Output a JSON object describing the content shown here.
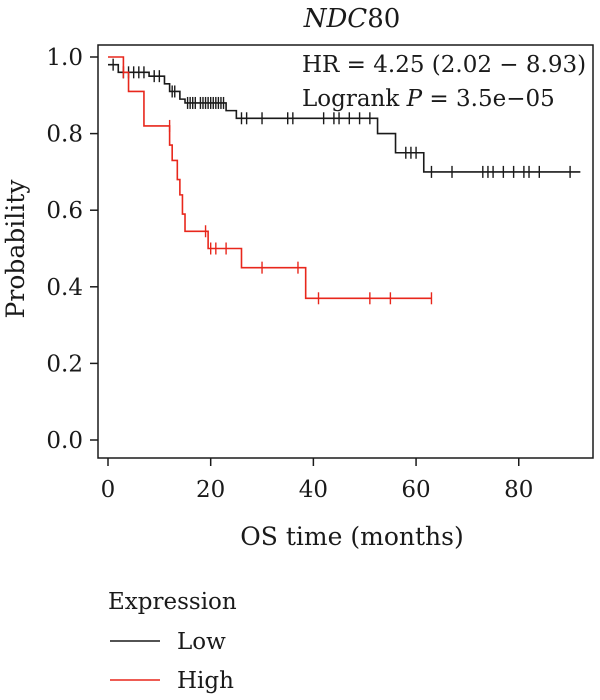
{
  "chart_data": {
    "type": "line",
    "title_gene": "NDC",
    "title_number": "80",
    "annotations": {
      "hr_text": "HR = 4.25 (2.02 − 8.93)",
      "logrank_prefix": "Logrank ",
      "logrank_p": "P",
      "logrank_value": " = 3.5e−05"
    },
    "xlabel": "OS time (months)",
    "ylabel": "Probability",
    "xlim": [
      0,
      93
    ],
    "ylim": [
      0,
      1.0
    ],
    "x_ticks": [
      0,
      20,
      40,
      60,
      80
    ],
    "y_ticks": [
      0.0,
      0.2,
      0.4,
      0.6,
      0.8,
      1.0
    ],
    "y_tick_labels": [
      "0.0",
      "0.2",
      "0.4",
      "0.6",
      "0.8",
      "1.0"
    ],
    "grid": false,
    "legend_title": "Expression",
    "series": [
      {
        "name": "Low",
        "color": "#1a1a1a",
        "steps": [
          [
            0,
            0.98
          ],
          [
            2,
            0.96
          ],
          [
            8,
            0.95
          ],
          [
            11,
            0.93
          ],
          [
            12,
            0.91
          ],
          [
            14,
            0.89
          ],
          [
            15,
            0.88
          ],
          [
            23,
            0.86
          ],
          [
            25,
            0.84
          ],
          [
            52.5,
            0.8
          ],
          [
            56,
            0.75
          ],
          [
            61.5,
            0.7
          ],
          [
            92,
            0.7
          ]
        ],
        "censors": [
          [
            1,
            0.98
          ],
          [
            3,
            0.96
          ],
          [
            4,
            0.96
          ],
          [
            5,
            0.96
          ],
          [
            6,
            0.96
          ],
          [
            7,
            0.96
          ],
          [
            9,
            0.95
          ],
          [
            10,
            0.95
          ],
          [
            12.5,
            0.91
          ],
          [
            13,
            0.91
          ],
          [
            15.5,
            0.88
          ],
          [
            16,
            0.88
          ],
          [
            16.5,
            0.88
          ],
          [
            17,
            0.88
          ],
          [
            18,
            0.88
          ],
          [
            18.5,
            0.88
          ],
          [
            19,
            0.88
          ],
          [
            19.5,
            0.88
          ],
          [
            20,
            0.88
          ],
          [
            20.5,
            0.88
          ],
          [
            21,
            0.88
          ],
          [
            21.5,
            0.88
          ],
          [
            22,
            0.88
          ],
          [
            22.5,
            0.88
          ],
          [
            26,
            0.84
          ],
          [
            27,
            0.84
          ],
          [
            30,
            0.84
          ],
          [
            35,
            0.84
          ],
          [
            36,
            0.84
          ],
          [
            42,
            0.84
          ],
          [
            44,
            0.84
          ],
          [
            45,
            0.84
          ],
          [
            47,
            0.84
          ],
          [
            49,
            0.84
          ],
          [
            51,
            0.84
          ],
          [
            58,
            0.75
          ],
          [
            59,
            0.75
          ],
          [
            60,
            0.75
          ],
          [
            63,
            0.7
          ],
          [
            67,
            0.7
          ],
          [
            73,
            0.7
          ],
          [
            74,
            0.7
          ],
          [
            75,
            0.7
          ],
          [
            77,
            0.7
          ],
          [
            79,
            0.7
          ],
          [
            81,
            0.7
          ],
          [
            82,
            0.7
          ],
          [
            84,
            0.7
          ],
          [
            90,
            0.7
          ]
        ]
      },
      {
        "name": "High",
        "color": "#e8271c",
        "steps": [
          [
            0,
            1.0
          ],
          [
            3,
            0.96
          ],
          [
            4,
            0.91
          ],
          [
            7,
            0.82
          ],
          [
            12,
            0.77
          ],
          [
            12.5,
            0.73
          ],
          [
            13.5,
            0.68
          ],
          [
            14,
            0.64
          ],
          [
            14.5,
            0.59
          ],
          [
            15,
            0.545
          ],
          [
            19.5,
            0.5
          ],
          [
            26,
            0.45
          ],
          [
            38.5,
            0.37
          ],
          [
            63,
            0.37
          ]
        ],
        "censors": [
          [
            3,
            0.96
          ],
          [
            12,
            0.82
          ],
          [
            19,
            0.545
          ],
          [
            20,
            0.5
          ],
          [
            21,
            0.5
          ],
          [
            23,
            0.5
          ],
          [
            30,
            0.45
          ],
          [
            37,
            0.45
          ],
          [
            41,
            0.37
          ],
          [
            51,
            0.37
          ],
          [
            55,
            0.37
          ],
          [
            63,
            0.37
          ]
        ]
      }
    ]
  }
}
